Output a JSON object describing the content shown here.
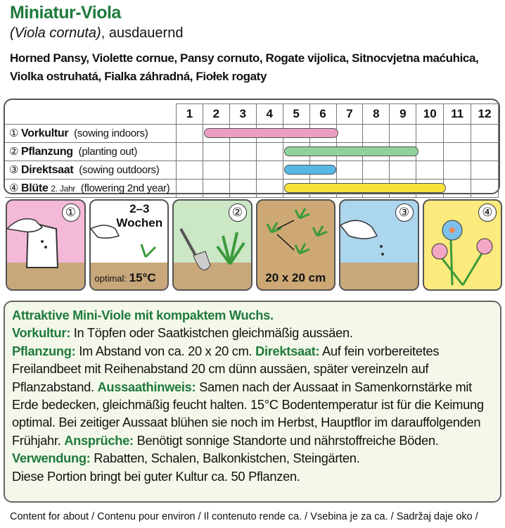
{
  "header": {
    "title": "Miniatur-Viola",
    "latin": "(Viola cornuta)",
    "latin_suffix": ", ausdauernd",
    "common_names": "Horned Pansy, Violette cornue, Pansy cornuto, Rogate vijolica, Sitnocvjetna maćuhica, Violka ostruhatá, Fialka záhradná, Fiołek rogaty"
  },
  "calendar": {
    "months": [
      "1",
      "2",
      "3",
      "4",
      "5",
      "6",
      "7",
      "8",
      "9",
      "10",
      "11",
      "12"
    ],
    "rows": [
      {
        "num": "①",
        "name": "Vorkultur",
        "extra": "",
        "en": "(sowing indoors)",
        "start": 2,
        "end": 6,
        "color": "#ec9ec2"
      },
      {
        "num": "②",
        "name": "Pflanzung",
        "extra": "",
        "en": "(planting out)",
        "start": 5,
        "end": 9,
        "color": "#8fd19a"
      },
      {
        "num": "③",
        "name": "Direktsaat",
        "extra": "",
        "en": "(sowing outdoors)",
        "start": 5,
        "end": 6,
        "color": "#55b8e6"
      },
      {
        "num": "④",
        "name": "Blüte",
        "extra": "2. Jahr",
        "en": "(flowering 2nd year)",
        "start": 5,
        "end": 10,
        "color": "#f7e23c"
      }
    ]
  },
  "panels": {
    "p1_num": "①",
    "weeks": "2–3 Wochen",
    "optimal_label": "optimal:",
    "optimal_temp": "15°C",
    "p3_num": "②",
    "spacing": "20 x 20 cm",
    "p5_num": "③",
    "p6_num": "④"
  },
  "description": [
    {
      "label": "Attraktive Mini-Viole mit kompaktem Wuchs.",
      "text": ""
    },
    {
      "label": "Vorkultur:",
      "text": " In Töpfen oder Saatkistchen gleichmäßig aussäen."
    },
    {
      "label": "Pflanzung:",
      "text": " Im Abstand von ca. 20 x 20 cm. "
    },
    {
      "label": "Direktsaat:",
      "text": " Auf fein vorbereitetes Freilandbeet mit Reihenabstand 20 cm dünn aussäen, später vereinzeln auf Pflanzabstand. "
    },
    {
      "label": "Aussaathinweis:",
      "text": " Samen nach der Aussaat in Samenkornstärke mit Erde bedecken, gleichmäßig feucht halten. 15°C Bodentemperatur ist für die Keimung optimal. Bei zeitiger Aussaat blühen sie noch im Herbst, Hauptflor im darauffolgenden Frühjahr. "
    },
    {
      "label": "Ansprüche:",
      "text": " Benötigt sonnige Standorte und nährstoffreiche Böden. "
    },
    {
      "label": "Verwendung:",
      "text": " Rabatten, Schalen, Balkonkistchen, Steingärten."
    },
    {
      "label": "",
      "text": "Diese Portion bringt bei guter Kultur ca. 50 Pflanzen."
    }
  ],
  "footer": "Content for about / Contenu pour environ / Il contenuto rende ca. / Vsebina je za ca. / Sadržaj daje oko /"
}
